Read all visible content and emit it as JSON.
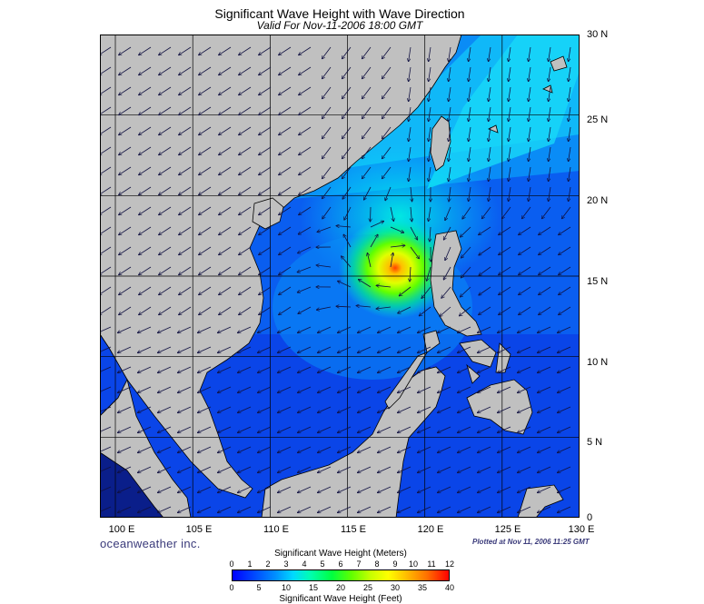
{
  "header": {
    "title": "Significant Wave Height with Wave Direction",
    "subtitle": "Valid For Nov-11-2006 18:00 GMT"
  },
  "map": {
    "lon_range": [
      99,
      130
    ],
    "lat_range": [
      0,
      30
    ],
    "lat_labels": [
      "30 N",
      "25 N",
      "20 N",
      "15 N",
      "10 N",
      "5 N",
      "0"
    ],
    "lon_labels": [
      "100 E",
      "105 E",
      "110 E",
      "115 E",
      "120 E",
      "125 E",
      "130 E"
    ],
    "land_color": "#c0c0c0",
    "peak_wave_location": {
      "lon": 117.8,
      "lat": 15.8
    }
  },
  "footer": {
    "brand": "oceanweather inc.",
    "plotted": "Plotted at Nov 11, 2006 11:25 GMT"
  },
  "colorbar": {
    "title_meters": "Significant Wave Height (Meters)",
    "title_feet": "Significant Wave Height (Feet)",
    "meters_ticks": [
      "0",
      "1",
      "2",
      "3",
      "4",
      "5",
      "6",
      "7",
      "8",
      "9",
      "10",
      "11",
      "12"
    ],
    "feet_ticks": [
      "0",
      "5",
      "10",
      "15",
      "20",
      "25",
      "30",
      "35",
      "40"
    ]
  }
}
